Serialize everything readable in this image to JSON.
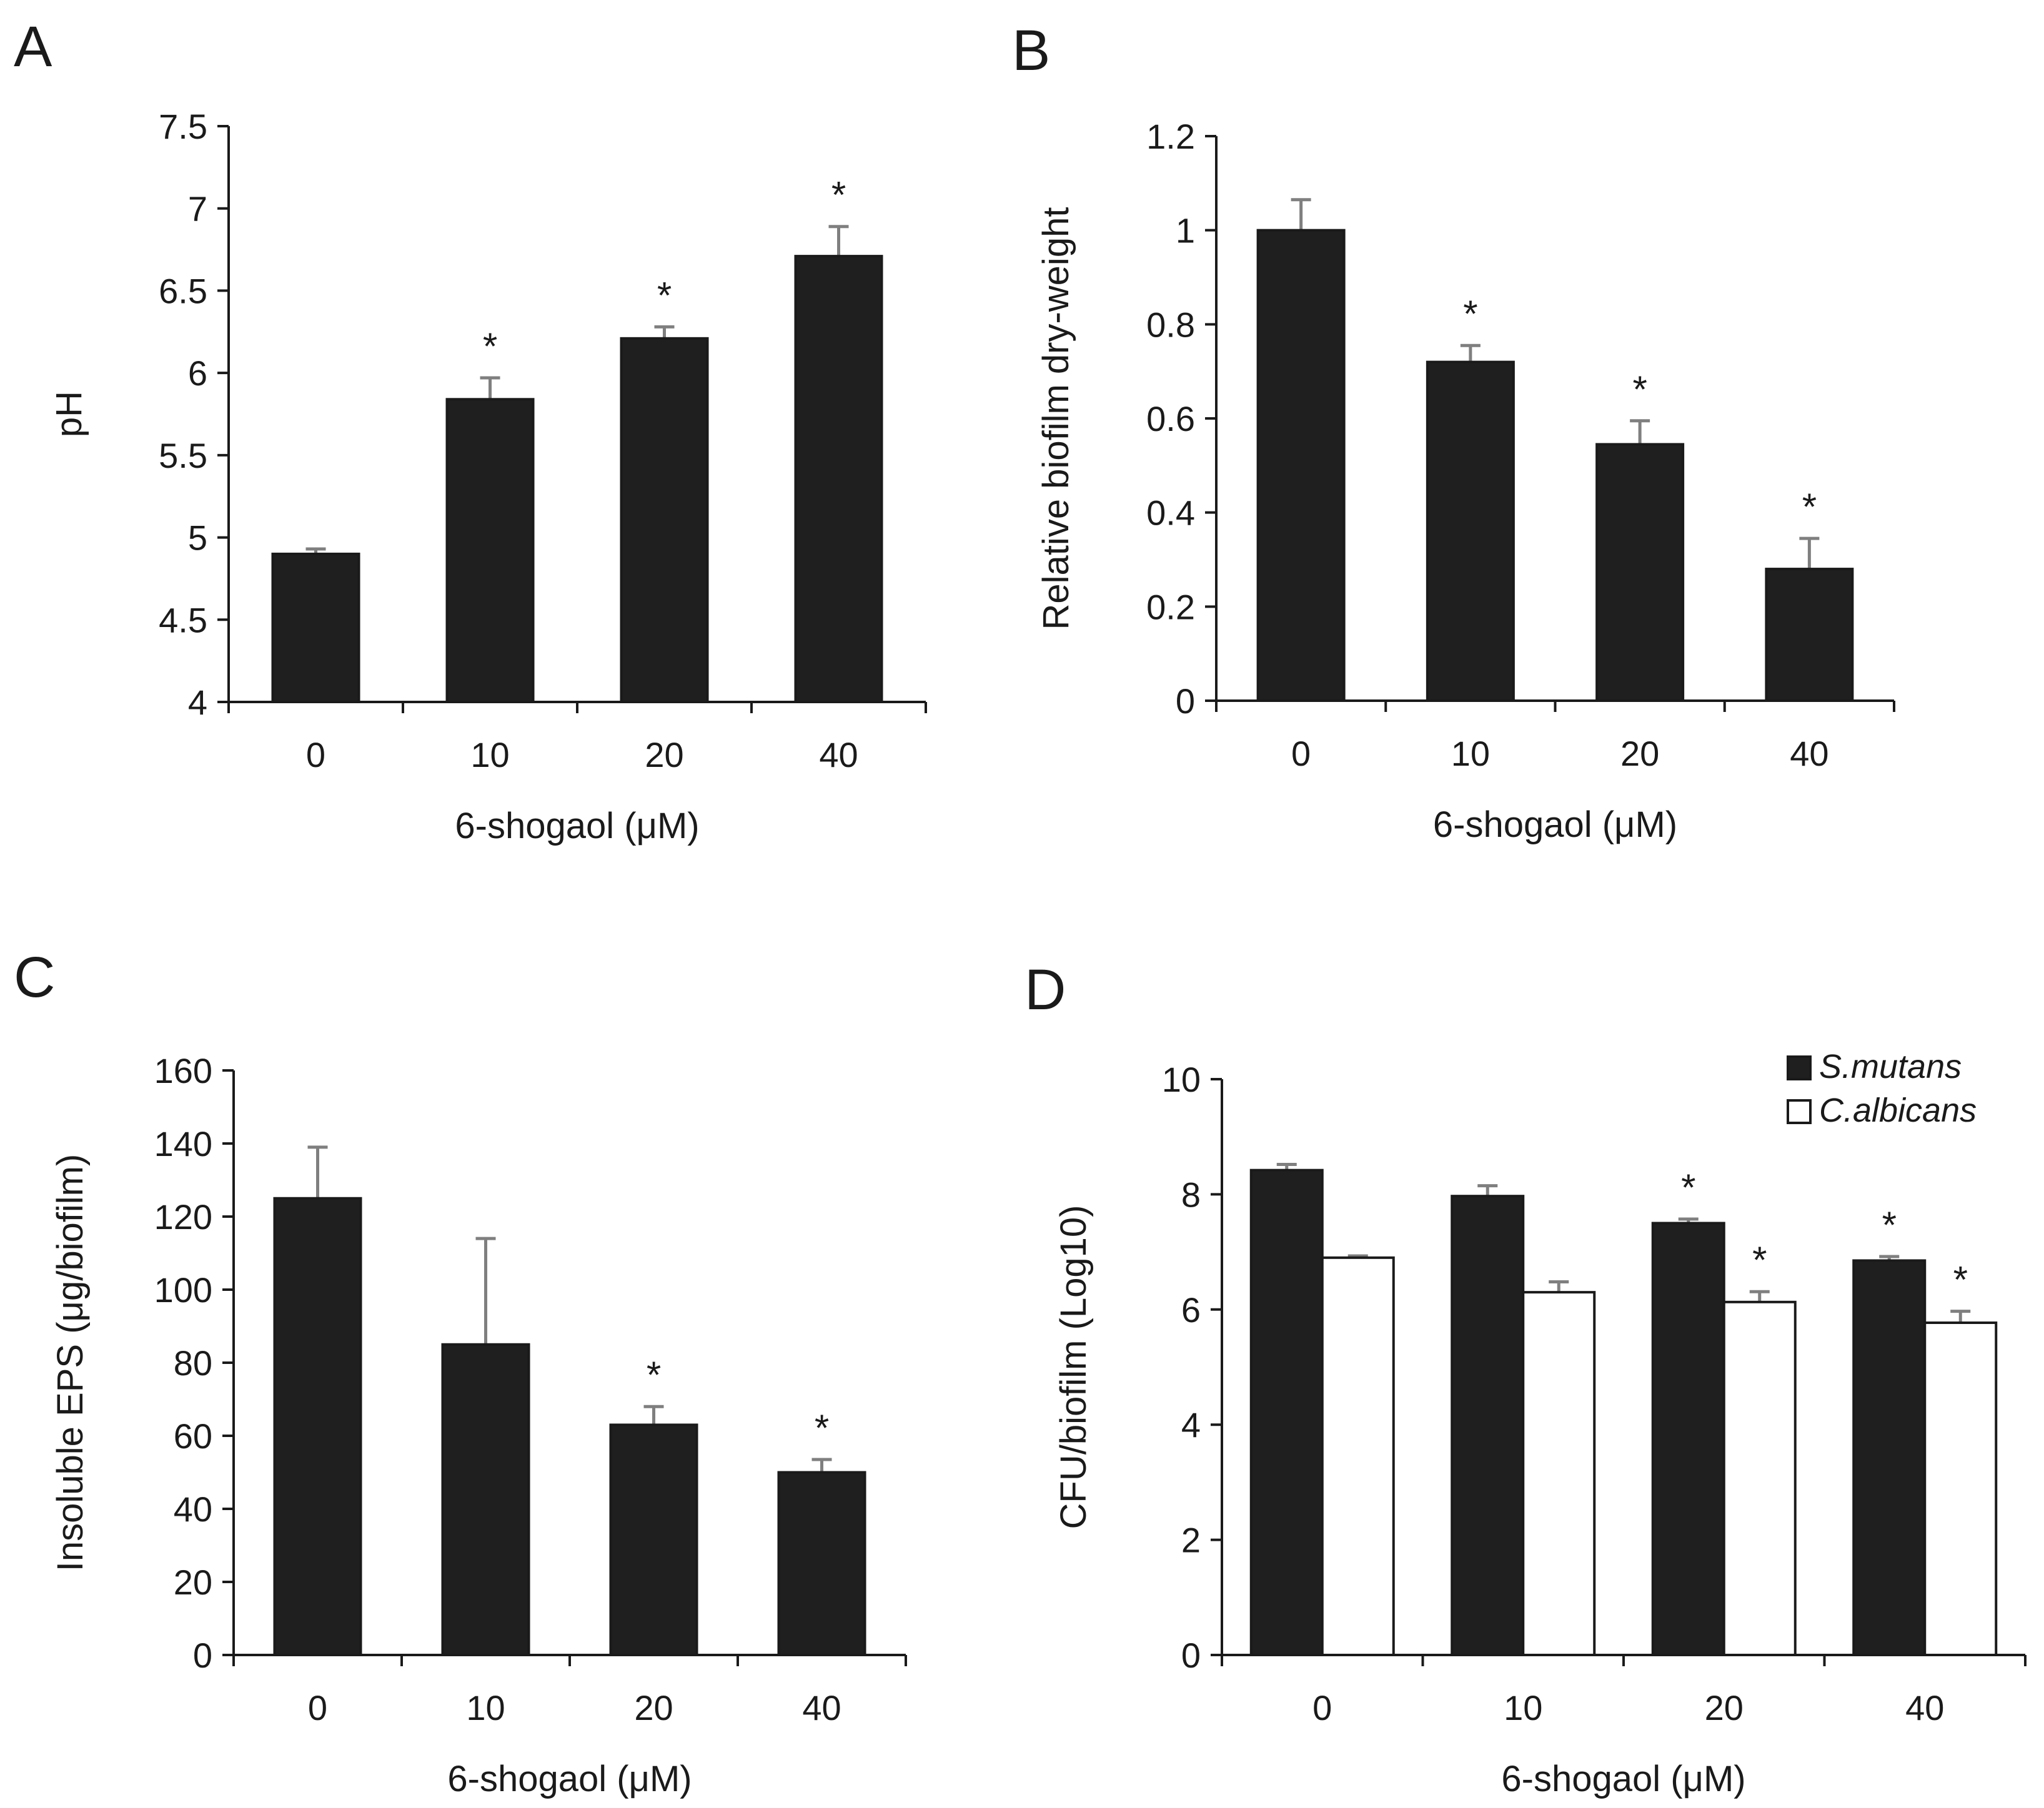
{
  "chart_data": [
    {
      "id": "A",
      "type": "bar",
      "panel_label": "A",
      "categories": [
        "0",
        "10",
        "20",
        "40"
      ],
      "series": [
        {
          "name": "pH",
          "color": "#1f1f1f",
          "values": [
            4.9,
            5.84,
            6.21,
            6.71
          ],
          "errors": [
            0.03,
            0.13,
            0.07,
            0.18
          ]
        }
      ],
      "significance": [
        "",
        "*",
        "*",
        "*"
      ],
      "xlabel": "6-shogaol (μM)",
      "ylabel": "pH",
      "ylim": [
        4,
        7.5
      ],
      "yticks": [
        4,
        4.5,
        5,
        5.5,
        6,
        6.5,
        7,
        7.5
      ],
      "ytick_labels": [
        "4",
        "4.5",
        "5",
        "5.5",
        "6",
        "6.5",
        "7",
        "7.5"
      ],
      "legend": null
    },
    {
      "id": "B",
      "type": "bar",
      "panel_label": "B",
      "categories": [
        "0",
        "10",
        "20",
        "40"
      ],
      "series": [
        {
          "name": "Relative biofilm dry-weight",
          "color": "#1f1f1f",
          "values": [
            1.0,
            0.72,
            0.545,
            0.28
          ],
          "errors": [
            0.065,
            0.035,
            0.05,
            0.065
          ]
        }
      ],
      "significance": [
        "",
        "*",
        "*",
        "*"
      ],
      "xlabel": "6-shogaol (μM)",
      "ylabel": "Relative biofilm dry-weight",
      "ylim": [
        0,
        1.2
      ],
      "yticks": [
        0,
        0.2,
        0.4,
        0.6,
        0.8,
        1,
        1.2
      ],
      "ytick_labels": [
        "0",
        "0.2",
        "0.4",
        "0.6",
        "0.8",
        "1",
        "1.2"
      ],
      "legend": null
    },
    {
      "id": "C",
      "type": "bar",
      "panel_label": "C",
      "categories": [
        "0",
        "10",
        "20",
        "40"
      ],
      "series": [
        {
          "name": "Insoluble EPS",
          "color": "#1f1f1f",
          "values": [
            125,
            85,
            63,
            50
          ],
          "errors": [
            14,
            29,
            5,
            3.5
          ]
        }
      ],
      "significance": [
        "",
        "",
        "*",
        "*"
      ],
      "xlabel": "6-shogaol (μM)",
      "ylabel": "Insoluble EPS (μg/biofilm)",
      "ylim": [
        0,
        160
      ],
      "yticks": [
        0,
        20,
        40,
        60,
        80,
        100,
        120,
        140,
        160
      ],
      "ytick_labels": [
        "0",
        "20",
        "40",
        "60",
        "80",
        "100",
        "120",
        "140",
        "160"
      ],
      "legend": null
    },
    {
      "id": "D",
      "type": "bar",
      "panel_label": "D",
      "categories": [
        "0",
        "10",
        "20",
        "40"
      ],
      "series": [
        {
          "name": "S.mutans",
          "color": "#1f1f1f",
          "values": [
            8.42,
            7.97,
            7.5,
            6.85
          ],
          "errors": [
            0.1,
            0.18,
            0.07,
            0.07
          ],
          "significance": [
            "",
            "",
            "*",
            "*"
          ]
        },
        {
          "name": "C.albicans",
          "color": "#ffffff",
          "values": [
            6.9,
            6.3,
            6.13,
            5.77
          ],
          "errors": [
            0.03,
            0.18,
            0.18,
            0.2
          ],
          "significance": [
            "",
            "",
            "*",
            "*"
          ]
        }
      ],
      "xlabel": "6-shogaol (μM)",
      "ylabel": "CFU/biofilm (Log10)",
      "ylim": [
        0,
        10
      ],
      "yticks": [
        0,
        2,
        4,
        6,
        8,
        10
      ],
      "ytick_labels": [
        "0",
        "2",
        "4",
        "6",
        "8",
        "10"
      ],
      "legend": "top-right"
    }
  ]
}
